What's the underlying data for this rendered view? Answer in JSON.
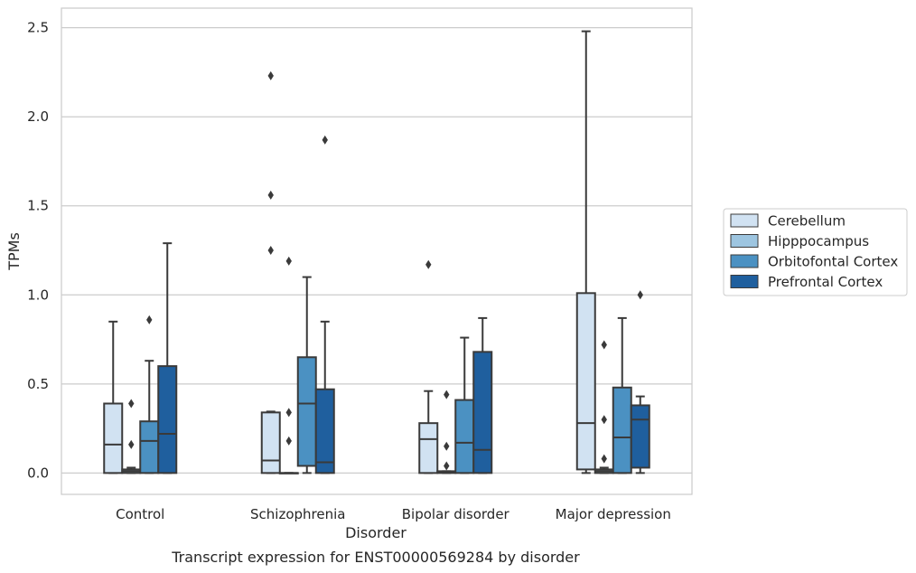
{
  "chart_data": {
    "type": "box",
    "caption": "Transcript expression for ENST00000569284 by disorder",
    "xlabel": "Disorder",
    "ylabel": "TPMs",
    "ylim": [
      -0.12,
      2.61
    ],
    "yticks": [
      "0.0",
      "0.5",
      "1.0",
      "1.5",
      "2.0",
      "2.5"
    ],
    "grid": "horizontal",
    "legend_position": "right",
    "categories": [
      "Control",
      "Schizophrenia",
      "Bipolar disorder",
      "Major depression"
    ],
    "series": [
      {
        "name": "Cerebellum",
        "color": "#d1e2f2",
        "boxes": [
          {
            "whislo": 0.0,
            "q1": 0.0,
            "med": 0.16,
            "q3": 0.39,
            "whishi": 0.85,
            "fliers": []
          },
          {
            "whislo": 0.0,
            "q1": 0.0,
            "med": 0.07,
            "q3": 0.34,
            "whishi": 0.345,
            "fliers": [
              2.23,
              1.56,
              1.25
            ]
          },
          {
            "whislo": 0.0,
            "q1": 0.0,
            "med": 0.19,
            "q3": 0.28,
            "whishi": 0.46,
            "fliers": [
              1.17
            ]
          },
          {
            "whislo": 0.0,
            "q1": 0.02,
            "med": 0.28,
            "q3": 1.01,
            "whishi": 2.48,
            "fliers": []
          }
        ]
      },
      {
        "name": "Hipppocampus",
        "color": "#9dc5e0",
        "boxes": [
          {
            "whislo": 0.0,
            "q1": 0.0,
            "med": 0.01,
            "q3": 0.02,
            "whishi": 0.03,
            "fliers": [
              0.39,
              0.16
            ]
          },
          {
            "whislo": 0.0,
            "q1": 0.0,
            "med": 0.0,
            "q3": 0.0,
            "whishi": 0.0,
            "fliers": [
              1.19,
              0.34,
              0.18
            ]
          },
          {
            "whislo": 0.0,
            "q1": 0.0,
            "med": 0.005,
            "q3": 0.01,
            "whishi": 0.01,
            "fliers": [
              0.44,
              0.15,
              0.04
            ]
          },
          {
            "whislo": 0.0,
            "q1": 0.0,
            "med": 0.01,
            "q3": 0.02,
            "whishi": 0.03,
            "fliers": [
              0.72,
              0.3,
              0.08
            ]
          }
        ]
      },
      {
        "name": "Orbitofontal Cortex",
        "color": "#4b91c2",
        "boxes": [
          {
            "whislo": 0.0,
            "q1": 0.0,
            "med": 0.18,
            "q3": 0.29,
            "whishi": 0.63,
            "fliers": [
              0.86
            ]
          },
          {
            "whislo": 0.0,
            "q1": 0.04,
            "med": 0.39,
            "q3": 0.65,
            "whishi": 1.1,
            "fliers": []
          },
          {
            "whislo": 0.0,
            "q1": 0.0,
            "med": 0.17,
            "q3": 0.41,
            "whishi": 0.76,
            "fliers": []
          },
          {
            "whislo": 0.0,
            "q1": 0.0,
            "med": 0.2,
            "q3": 0.48,
            "whishi": 0.87,
            "fliers": []
          }
        ]
      },
      {
        "name": "Prefrontal Cortex",
        "color": "#1f5f9e",
        "boxes": [
          {
            "whislo": 0.0,
            "q1": 0.0,
            "med": 0.22,
            "q3": 0.6,
            "whishi": 1.29,
            "fliers": []
          },
          {
            "whislo": 0.0,
            "q1": 0.0,
            "med": 0.06,
            "q3": 0.47,
            "whishi": 0.85,
            "fliers": [
              1.87
            ]
          },
          {
            "whislo": 0.0,
            "q1": 0.0,
            "med": 0.13,
            "q3": 0.68,
            "whishi": 0.87,
            "fliers": []
          },
          {
            "whislo": 0.0,
            "q1": 0.03,
            "med": 0.3,
            "q3": 0.38,
            "whishi": 0.43,
            "fliers": [
              1.0
            ]
          }
        ]
      }
    ]
  }
}
